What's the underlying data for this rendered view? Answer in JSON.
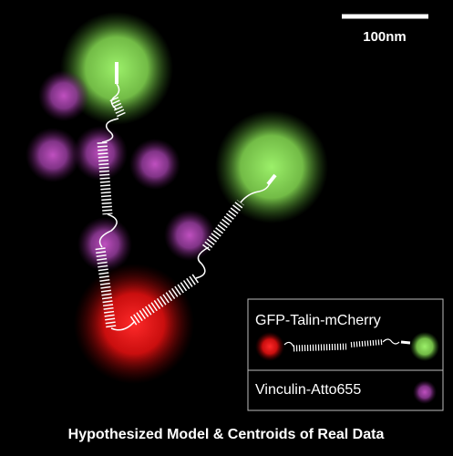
{
  "scale_bar": {
    "label": "100nm"
  },
  "legend": {
    "entries": [
      "GFP-Talin-mCherry",
      "Vinculin-Atto655"
    ]
  },
  "caption": "Hypothesized Model & Centroids of Real Data"
}
